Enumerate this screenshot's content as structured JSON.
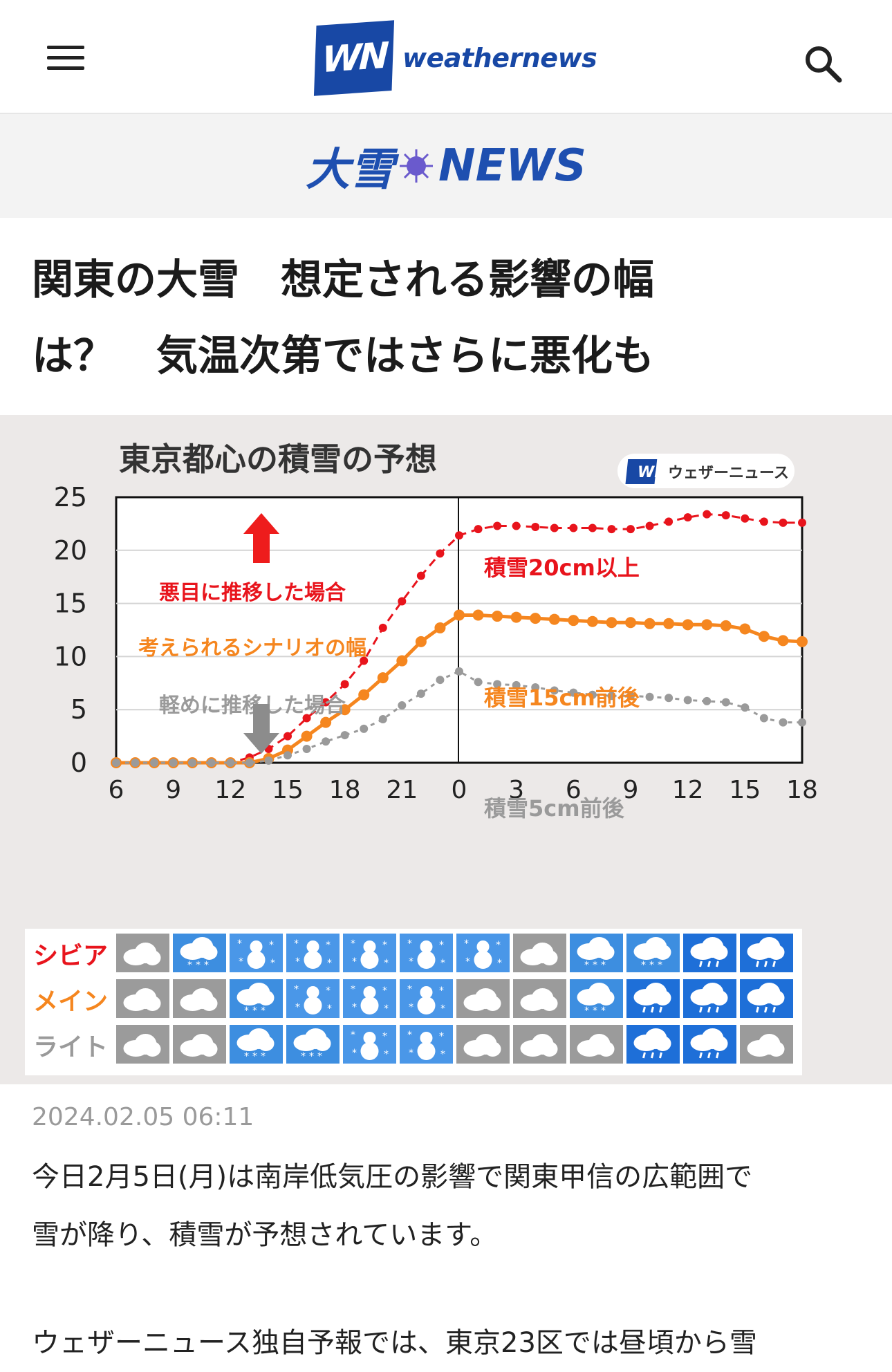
{
  "header": {
    "logo_mark": "WN",
    "logo_text": "weathernews"
  },
  "banner": {
    "title_left": "大雪",
    "title_right": "NEWS"
  },
  "article": {
    "title_line1": "関東の大雪　想定される影響の幅",
    "title_line2": "は？　気温次第ではさらに悪化も",
    "timestamp": "2024.02.05 06:11",
    "paragraph1_line1": "今日2月5日(月)は南岸低気圧の影響で関東甲信の広範囲で",
    "paragraph1_line2": "雪が降り、積雪が予想されています。",
    "paragraph2": "ウェザーニュース独自予報では、東京23区では昼頃から雪"
  },
  "figure": {
    "brand_mark": "WN",
    "brand_text": "ウェザーニュース",
    "annotation_up": "悪目に推移した場合",
    "annotation_mid": "考えられるシナリオの幅",
    "annotation_down": "軽めに推移した場合",
    "severe_label": "積雪20cm以上",
    "main_label": "積雪15cm前後",
    "light_label": "積雪5cm前後",
    "row_labels": [
      "シビア",
      "メイン",
      "ライト"
    ],
    "weather_icons": [
      [
        "cloud",
        "snow",
        "snowman",
        "snowman",
        "snowman",
        "snowman",
        "snowman",
        "cloud",
        "snow",
        "snow",
        "rain",
        "rain"
      ],
      [
        "cloud",
        "cloud",
        "snow",
        "snowman",
        "snowman",
        "snowman",
        "cloud",
        "cloud",
        "snow",
        "rain",
        "rain",
        "rain"
      ],
      [
        "cloud",
        "cloud",
        "snow",
        "snow",
        "snowman",
        "snowman",
        "cloud",
        "cloud",
        "cloud",
        "rain",
        "rain",
        "cloud"
      ]
    ],
    "icon_colors": {
      "cloud": "#9b9b9b",
      "snow": "#3d8ee0",
      "snowman": "#4a97e8",
      "rain": "#1e6fd8"
    }
  },
  "chart_data": {
    "type": "line",
    "title": "東京都心の積雪の予想",
    "categories": [
      "6",
      "7",
      "8",
      "9",
      "10",
      "11",
      "12",
      "13",
      "14",
      "15",
      "16",
      "17",
      "18",
      "19",
      "20",
      "21",
      "22",
      "23",
      "0",
      "1",
      "2",
      "3",
      "4",
      "5",
      "6",
      "7",
      "8",
      "9",
      "10",
      "11",
      "12",
      "13",
      "14",
      "15",
      "16",
      "17",
      "18"
    ],
    "x_tick_labels": [
      "6",
      "9",
      "12",
      "15",
      "18",
      "21",
      "0",
      "3",
      "6",
      "9",
      "12",
      "15",
      "18"
    ],
    "ylim": [
      0,
      25
    ],
    "yticks": [
      0,
      5,
      10,
      15,
      20,
      25
    ],
    "grid": true,
    "series": [
      {
        "color": "#e8141c",
        "style": "dashed",
        "values": [
          0,
          0,
          0,
          0,
          0,
          0,
          0,
          0.5,
          1.3,
          2.5,
          4.2,
          5.7,
          7.4,
          9.6,
          12.7,
          15.2,
          17.6,
          19.7,
          21.4,
          22.0,
          22.3,
          22.3,
          22.2,
          22.1,
          22.1,
          22.1,
          22.0,
          22.0,
          22.3,
          22.7,
          23.1,
          23.4,
          23.3,
          23.0,
          22.7,
          22.6,
          22.6
        ]
      },
      {
        "color": "#f5861f",
        "style": "solid",
        "values": [
          0,
          0,
          0,
          0,
          0,
          0,
          0,
          0,
          0.4,
          1.2,
          2.5,
          3.8,
          5.0,
          6.4,
          8.0,
          9.6,
          11.4,
          12.7,
          13.9,
          13.9,
          13.8,
          13.7,
          13.6,
          13.5,
          13.4,
          13.3,
          13.2,
          13.2,
          13.1,
          13.1,
          13.0,
          13.0,
          12.9,
          12.6,
          11.9,
          11.5,
          11.4
        ]
      },
      {
        "color": "#9a9a9a",
        "style": "dotted",
        "values": [
          0,
          0,
          0,
          0,
          0,
          0,
          0,
          0,
          0.2,
          0.7,
          1.3,
          2.0,
          2.6,
          3.2,
          4.1,
          5.4,
          6.5,
          7.8,
          8.6,
          7.6,
          7.4,
          7.3,
          7.1,
          6.8,
          6.6,
          6.4,
          6.3,
          6.3,
          6.2,
          6.1,
          5.9,
          5.8,
          5.7,
          5.2,
          4.2,
          3.8,
          3.8
        ]
      }
    ]
  }
}
